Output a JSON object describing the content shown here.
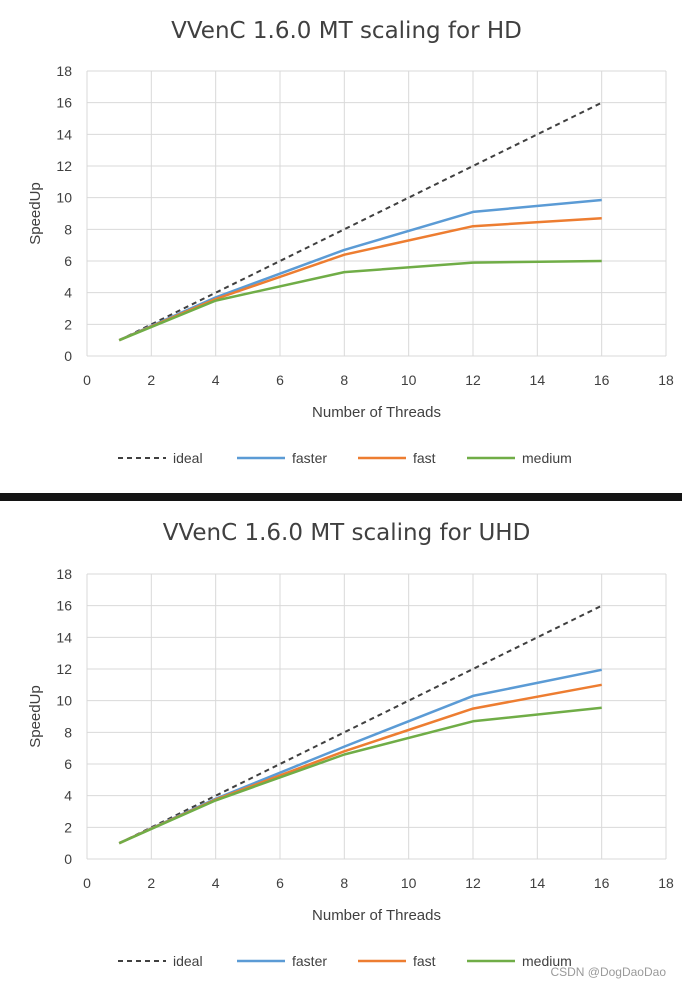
{
  "chart_data": [
    {
      "type": "line",
      "title": "VVenC 1.6.0 MT scaling for HD",
      "xlabel": "Number  of Threads",
      "ylabel": "SpeedUp",
      "xlim": [
        0,
        18
      ],
      "ylim": [
        0,
        18
      ],
      "xticks": [
        0,
        2,
        4,
        6,
        8,
        10,
        12,
        14,
        16,
        18
      ],
      "yticks": [
        0,
        2,
        4,
        6,
        8,
        10,
        12,
        14,
        16,
        18
      ],
      "x": [
        1,
        4,
        8,
        12,
        16
      ],
      "grid": true,
      "legend_position": "bottom",
      "series": [
        {
          "name": "ideal",
          "color": "#404040",
          "style": "dashed",
          "values": [
            1,
            4,
            8,
            12,
            16
          ]
        },
        {
          "name": "faster",
          "color": "#5b9bd5",
          "style": "solid",
          "values": [
            1,
            3.7,
            6.7,
            9.1,
            9.85
          ]
        },
        {
          "name": "fast",
          "color": "#ed7d31",
          "style": "solid",
          "values": [
            1,
            3.6,
            6.4,
            8.2,
            8.7
          ]
        },
        {
          "name": "medium",
          "color": "#70ad47",
          "style": "solid",
          "values": [
            1,
            3.5,
            5.3,
            5.9,
            6.0
          ]
        }
      ]
    },
    {
      "type": "line",
      "title": "VVenC 1.6.0 MT scaling for UHD",
      "xlabel": "Number  of Threads",
      "ylabel": "SpeedUp",
      "xlim": [
        0,
        18
      ],
      "ylim": [
        0,
        18
      ],
      "xticks": [
        0,
        2,
        4,
        6,
        8,
        10,
        12,
        14,
        16,
        18
      ],
      "yticks": [
        0,
        2,
        4,
        6,
        8,
        10,
        12,
        14,
        16,
        18
      ],
      "x": [
        1,
        4,
        8,
        12,
        16
      ],
      "grid": true,
      "legend_position": "bottom",
      "series": [
        {
          "name": "ideal",
          "color": "#404040",
          "style": "dashed",
          "values": [
            1,
            4,
            8,
            12,
            16
          ]
        },
        {
          "name": "faster",
          "color": "#5b9bd5",
          "style": "solid",
          "values": [
            1,
            3.8,
            7.1,
            10.3,
            11.95
          ]
        },
        {
          "name": "fast",
          "color": "#ed7d31",
          "style": "solid",
          "values": [
            1,
            3.75,
            6.8,
            9.5,
            11.0
          ]
        },
        {
          "name": "medium",
          "color": "#70ad47",
          "style": "solid",
          "values": [
            1,
            3.7,
            6.6,
            8.7,
            9.55
          ]
        }
      ]
    }
  ],
  "divider_color": "#141414",
  "watermark": "CSDN @DogDaoDao"
}
